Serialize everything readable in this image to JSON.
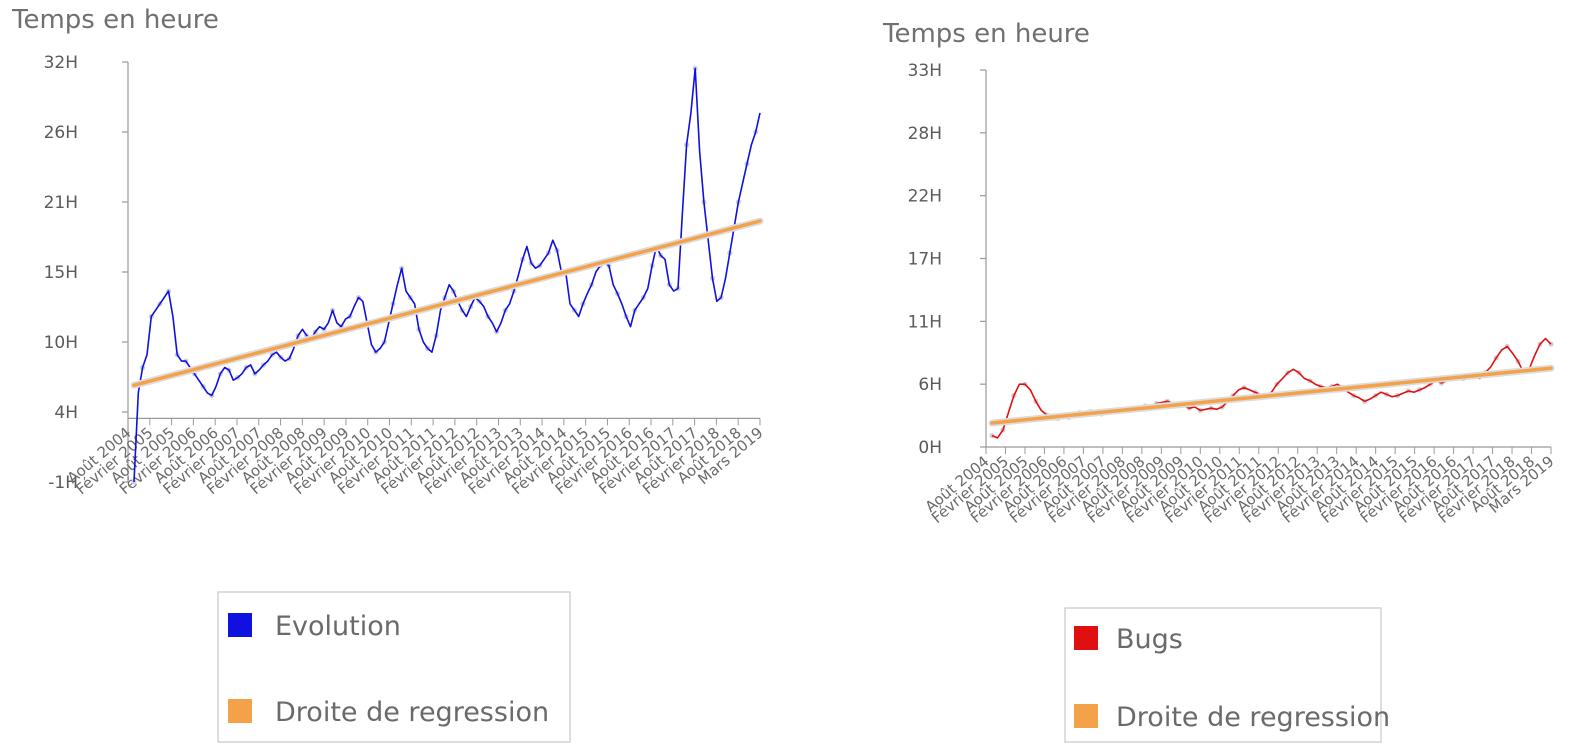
{
  "chart_data": [
    {
      "type": "line",
      "ylabel": "Temps en heure",
      "yticks": [
        "-1H",
        "4H",
        "10H",
        "15H",
        "21H",
        "26H",
        "32H"
      ],
      "ylim": [
        -1,
        32
      ],
      "x_tick_labels": [
        "Août 2004",
        "Février 2005",
        "Août 2005",
        "Février 2006",
        "Août 2006",
        "Février 2007",
        "Août 2007",
        "Février 2008",
        "Août 2008",
        "Février 2009",
        "Août 2009",
        "Février 2010",
        "Août 2010",
        "Février 2011",
        "Août 2011",
        "Février 2012",
        "Août 2012",
        "Février 2013",
        "Août 2013",
        "Février 2014",
        "Août 2014",
        "Février 2015",
        "Août 2015",
        "Février 2016",
        "Août 2016",
        "Février 2017",
        "Août 2017",
        "Février 2018",
        "Août 2018",
        "Mars 2019"
      ],
      "grid": false,
      "legend_position": "bottom",
      "series": [
        {
          "name": "Evolution",
          "color": "#1010e0",
          "values": [
            -1,
            6,
            8,
            9,
            12,
            12.5,
            13,
            13.5,
            14,
            12,
            9,
            8.5,
            8.5,
            8,
            7.5,
            7,
            6.5,
            6,
            5.8,
            6.5,
            7.5,
            8,
            7.8,
            7,
            7.2,
            7.5,
            8,
            8.2,
            7.5,
            7.8,
            8.2,
            8.5,
            9,
            9.2,
            8.8,
            8.5,
            8.7,
            9.5,
            10.5,
            11,
            10.5,
            10.2,
            10.8,
            11.2,
            11,
            11.5,
            12.5,
            11.5,
            11.2,
            11.8,
            12,
            12.8,
            13.5,
            13.2,
            11.5,
            9.8,
            9.2,
            9.5,
            10,
            11.5,
            13,
            14.5,
            15.8,
            14,
            13.5,
            13,
            11,
            10,
            9.5,
            9.2,
            10.5,
            12.5,
            13.5,
            14.5,
            14,
            13.2,
            12.5,
            12,
            12.8,
            13.5,
            13.2,
            12.8,
            12,
            11.5,
            10.8,
            11.5,
            12.5,
            13,
            14,
            15.2,
            16.5,
            17.5,
            16.2,
            15.8,
            16,
            16.5,
            17,
            18,
            17.2,
            15.5,
            15.5,
            13,
            12.5,
            12,
            13,
            13.8,
            14.5,
            15.5,
            16,
            16.2,
            16,
            14.5,
            13.8,
            13,
            12,
            11.2,
            12.5,
            13,
            13.5,
            14.2,
            16,
            17.5,
            16.8,
            16.5,
            14.5,
            14,
            14.2,
            20,
            25.5,
            28,
            31.5,
            25,
            21,
            18,
            15,
            13.2,
            13.5,
            15,
            17,
            19,
            21,
            22.5,
            24,
            25.5,
            26.5,
            28
          ]
        },
        {
          "name": "Droite de regression",
          "color": "#f4a24a",
          "line": {
            "start": 6.6,
            "end": 19.5
          }
        }
      ]
    },
    {
      "type": "line",
      "ylabel": "Temps en heure",
      "yticks": [
        "0H",
        "6H",
        "11H",
        "17H",
        "22H",
        "28H",
        "33H"
      ],
      "ylim": [
        0,
        33
      ],
      "x_tick_labels": [
        "Août 2004",
        "Février 2005",
        "Août 2005",
        "Février 2006",
        "Août 2006",
        "Février 2007",
        "Août 2007",
        "Février 2008",
        "Août 2008",
        "Février 2009",
        "Août 2009",
        "Février 2010",
        "Août 2010",
        "Février 2011",
        "Août 2011",
        "Février 2012",
        "Août 2012",
        "Février 2013",
        "Août 2013",
        "Février 2014",
        "Août 2014",
        "Février 2015",
        "Août 2015",
        "Février 2016",
        "Août 2016",
        "Février 2017",
        "Août 2017",
        "Février 2018",
        "Août 2018",
        "Mars 2019"
      ],
      "grid": false,
      "legend_position": "bottom",
      "series": [
        {
          "name": "Bugs",
          "color": "#e01010",
          "values": [
            1,
            0.8,
            1.5,
            3,
            4.5,
            5.5,
            5.5,
            5,
            4,
            3.2,
            2.8,
            2.5,
            2.5,
            2.8,
            2.6,
            2.7,
            3,
            2.9,
            3.1,
            3,
            2.9,
            3.2,
            3.1,
            3,
            3.2,
            3.4,
            3.3,
            3.5,
            3.6,
            3.5,
            3.8,
            3.9,
            4,
            3.8,
            3.7,
            3.6,
            3.4,
            3.5,
            3.2,
            3.3,
            3.4,
            3.3,
            3.5,
            4,
            4.5,
            5,
            5.2,
            5,
            4.8,
            4.6,
            4.5,
            4.8,
            5.5,
            6,
            6.5,
            6.8,
            6.5,
            6,
            5.8,
            5.5,
            5.3,
            5.2,
            5.3,
            5.5,
            5.2,
            4.8,
            4.5,
            4.3,
            4,
            4.2,
            4.5,
            4.8,
            4.6,
            4.4,
            4.5,
            4.7,
            4.9,
            4.8,
            5,
            5.2,
            5.5,
            5.8,
            5.6,
            5.8,
            6,
            6.2,
            6,
            6.3,
            6.2,
            6,
            6.5,
            7,
            7.8,
            8.5,
            8.8,
            8.2,
            7.5,
            6.5,
            6.8,
            8,
            9,
            9.5,
            9
          ]
        },
        {
          "name": "Droite de regression",
          "color": "#f4a24a",
          "line": {
            "start": 2.1,
            "end": 6.9
          }
        }
      ]
    }
  ]
}
